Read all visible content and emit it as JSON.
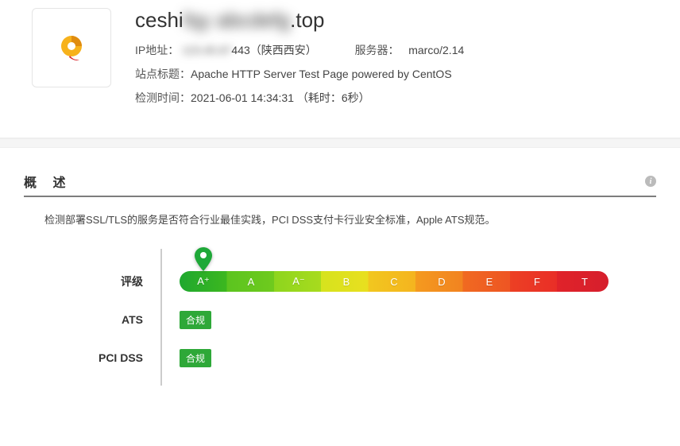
{
  "header": {
    "domain_prefix": "ceshi",
    "domain_mid_blurred": "fqy abcdefg",
    "domain_suffix": ".top",
    "ip_label": "IP地址：",
    "ip_blurred": "123.45.67",
    "ip_suffix": "443（陕西西安）",
    "server_label": "服务器：",
    "server_value": "marco/2.14",
    "title_label": "站点标题：",
    "title_value": "Apache HTTP Server Test Page powered by CentOS",
    "time_label": "检测时间：",
    "time_value": "2021-06-01 14:34:31 （耗时：6秒）"
  },
  "overview": {
    "section_title": "概 述",
    "description": "检测部署SSL/TLS的服务是否符合行业最佳实践，PCI DSS支付卡行业安全标准，Apple ATS规范。",
    "grade": {
      "label": "评级",
      "cells": [
        "A⁺",
        "A",
        "A⁻",
        "B",
        "C",
        "D",
        "E",
        "F",
        "T"
      ],
      "pin_index": 0,
      "bar_gradient_stops": [
        "#1fa82f",
        "#3cb71f",
        "#5bc41f",
        "#6fca1e",
        "#8dd51e",
        "#a8db1e",
        "#d6e31e",
        "#e9df1f",
        "#f2c71f",
        "#f4b41f",
        "#f49a1f",
        "#f28320",
        "#f06a21",
        "#ee5523",
        "#ec4024",
        "#e92e27",
        "#e0232a",
        "#d61e2c"
      ],
      "pin_color": "#1ea838"
    },
    "compliance": [
      {
        "label": "ATS",
        "badge": "合规",
        "badge_color": "#2ea838"
      },
      {
        "label": "PCI DSS",
        "badge": "合规",
        "badge_color": "#2ea838"
      }
    ]
  }
}
